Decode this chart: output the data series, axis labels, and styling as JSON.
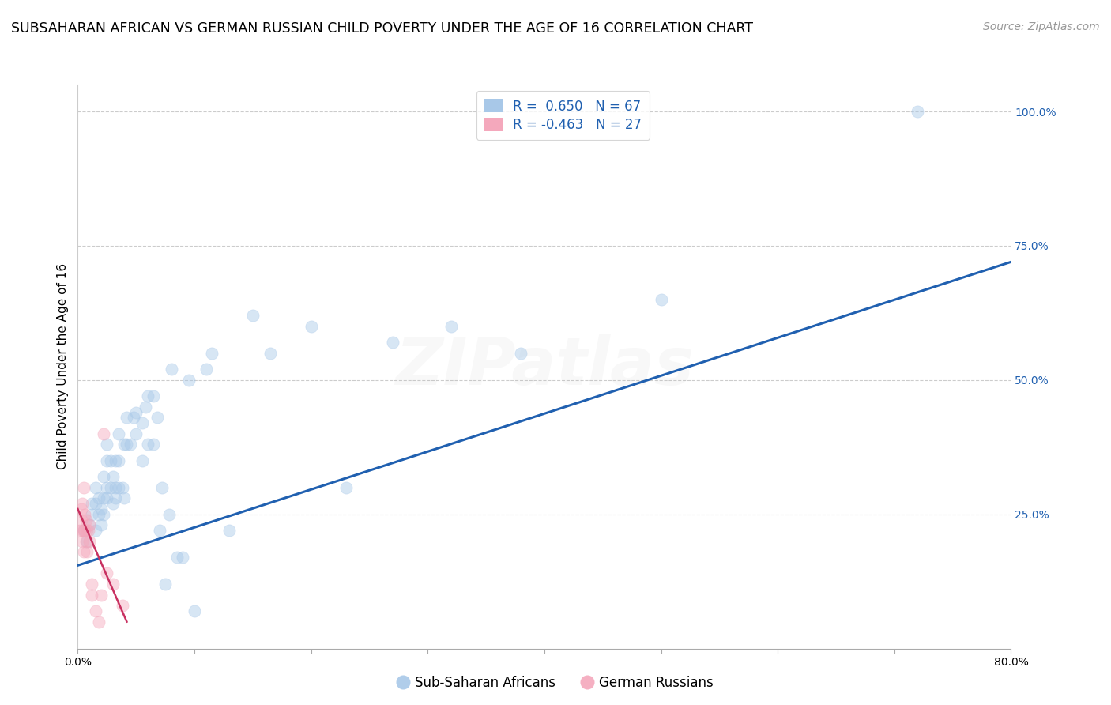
{
  "title": "SUBSAHARAN AFRICAN VS GERMAN RUSSIAN CHILD POVERTY UNDER THE AGE OF 16 CORRELATION CHART",
  "source": "Source: ZipAtlas.com",
  "ylabel": "Child Poverty Under the Age of 16",
  "ytick_values": [
    0.0,
    0.25,
    0.5,
    0.75,
    1.0
  ],
  "ytick_labels_right": [
    "",
    "25.0%",
    "50.0%",
    "75.0%",
    "100.0%"
  ],
  "xlim": [
    0.0,
    0.8
  ],
  "ylim": [
    0.0,
    1.05
  ],
  "label_blue": "Sub-Saharan Africans",
  "label_pink": "German Russians",
  "color_blue": "#a8c8e8",
  "color_pink": "#f4a8bc",
  "color_line_blue": "#2060b0",
  "color_line_pink": "#c83060",
  "blue_scatter_x": [
    0.005,
    0.008,
    0.01,
    0.012,
    0.012,
    0.015,
    0.015,
    0.015,
    0.018,
    0.018,
    0.02,
    0.02,
    0.022,
    0.022,
    0.022,
    0.025,
    0.025,
    0.025,
    0.025,
    0.028,
    0.028,
    0.03,
    0.03,
    0.032,
    0.032,
    0.032,
    0.035,
    0.035,
    0.035,
    0.038,
    0.04,
    0.04,
    0.042,
    0.042,
    0.045,
    0.048,
    0.05,
    0.05,
    0.055,
    0.055,
    0.058,
    0.06,
    0.06,
    0.065,
    0.065,
    0.068,
    0.07,
    0.072,
    0.075,
    0.078,
    0.08,
    0.085,
    0.09,
    0.095,
    0.1,
    0.11,
    0.115,
    0.13,
    0.15,
    0.165,
    0.2,
    0.23,
    0.27,
    0.32,
    0.38,
    0.5,
    0.72
  ],
  "blue_scatter_y": [
    0.22,
    0.2,
    0.23,
    0.25,
    0.27,
    0.22,
    0.27,
    0.3,
    0.25,
    0.28,
    0.23,
    0.26,
    0.25,
    0.28,
    0.32,
    0.28,
    0.3,
    0.35,
    0.38,
    0.3,
    0.35,
    0.27,
    0.32,
    0.28,
    0.3,
    0.35,
    0.3,
    0.35,
    0.4,
    0.3,
    0.28,
    0.38,
    0.38,
    0.43,
    0.38,
    0.43,
    0.4,
    0.44,
    0.35,
    0.42,
    0.45,
    0.38,
    0.47,
    0.38,
    0.47,
    0.43,
    0.22,
    0.3,
    0.12,
    0.25,
    0.52,
    0.17,
    0.17,
    0.5,
    0.07,
    0.52,
    0.55,
    0.22,
    0.62,
    0.55,
    0.6,
    0.3,
    0.57,
    0.6,
    0.55,
    0.65,
    1.0
  ],
  "pink_scatter_x": [
    0.002,
    0.003,
    0.003,
    0.004,
    0.004,
    0.004,
    0.005,
    0.005,
    0.005,
    0.006,
    0.006,
    0.007,
    0.007,
    0.008,
    0.008,
    0.009,
    0.01,
    0.01,
    0.012,
    0.012,
    0.015,
    0.018,
    0.02,
    0.022,
    0.025,
    0.03,
    0.038
  ],
  "pink_scatter_y": [
    0.22,
    0.24,
    0.26,
    0.2,
    0.22,
    0.27,
    0.18,
    0.22,
    0.3,
    0.22,
    0.25,
    0.2,
    0.24,
    0.18,
    0.22,
    0.22,
    0.2,
    0.23,
    0.1,
    0.12,
    0.07,
    0.05,
    0.1,
    0.4,
    0.14,
    0.12,
    0.08
  ],
  "blue_line_x": [
    0.0,
    0.8
  ],
  "blue_line_y": [
    0.155,
    0.72
  ],
  "pink_line_x": [
    0.0,
    0.042
  ],
  "pink_line_y": [
    0.26,
    0.05
  ],
  "grid_color": "#cccccc",
  "background_color": "#ffffff",
  "title_fontsize": 12.5,
  "axis_label_fontsize": 11,
  "tick_fontsize": 10,
  "legend_fontsize": 12,
  "source_fontsize": 10,
  "marker_size": 120,
  "marker_alpha": 0.45,
  "watermark_text": "ZIPatlas",
  "watermark_alpha": 0.08
}
